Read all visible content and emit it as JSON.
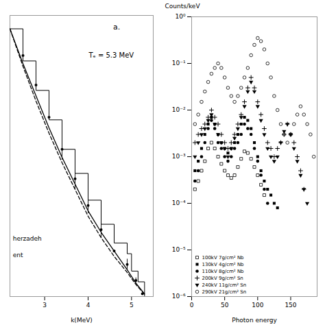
{
  "chart_data": [
    {
      "type": "line",
      "xlabel": "k(MeV)",
      "xlim": [
        2.2,
        5.5
      ],
      "xticks": [
        3,
        4,
        5
      ],
      "ylim": [
        0.0,
        1.05
      ],
      "tick_labels": "x",
      "annotations": [
        "Tₑ = 5.3 MeV",
        "a.",
        "herzadeh",
        "ent"
      ],
      "series": [
        {
          "type": "step",
          "color": "black",
          "x": [
            2.2,
            2.5,
            2.8,
            3.1,
            3.4,
            3.7,
            4.0,
            4.3,
            4.6,
            4.9,
            5.0,
            5.15,
            5.3
          ],
          "values": [
            1.0,
            0.88,
            0.77,
            0.66,
            0.55,
            0.46,
            0.36,
            0.27,
            0.2,
            0.16,
            0.095,
            0.055,
            0.0
          ]
        },
        {
          "type": "line",
          "color": "black",
          "line_style": "solid",
          "x": [
            2.2,
            2.5,
            2.8,
            3.1,
            3.4,
            3.7,
            4.0,
            4.3,
            4.6,
            4.9,
            5.1,
            5.3
          ],
          "values": [
            1.0,
            0.87,
            0.75,
            0.63,
            0.52,
            0.42,
            0.32,
            0.24,
            0.17,
            0.1,
            0.05,
            0.01
          ]
        },
        {
          "type": "line",
          "color": "black",
          "line_style": "dashed",
          "x": [
            2.2,
            2.5,
            2.8,
            3.1,
            3.4,
            3.7,
            4.0,
            4.3,
            4.6,
            4.9,
            5.1,
            5.3
          ],
          "values": [
            1.0,
            0.86,
            0.73,
            0.61,
            0.5,
            0.4,
            0.3,
            0.22,
            0.15,
            0.09,
            0.045,
            0.008
          ]
        },
        {
          "type": "scatter",
          "color": "black",
          "marker": "circle",
          "x": [
            2.5,
            2.8,
            3.1,
            3.4,
            3.7,
            4.0,
            4.3,
            4.6,
            4.9,
            5.1,
            5.25
          ],
          "values": [
            0.9,
            0.79,
            0.67,
            0.55,
            0.44,
            0.34,
            0.25,
            0.17,
            0.12,
            0.06,
            0.01
          ]
        },
        {
          "type": "errorbar",
          "color": "black",
          "x": [
            3.4,
            3.7,
            4.0,
            4.3,
            4.9,
            5.1
          ],
          "values": [
            0.55,
            0.44,
            0.34,
            0.25,
            0.12,
            0.06
          ],
          "error": [
            0.04,
            0.04,
            0.03,
            0.03,
            0.02,
            0.01
          ]
        }
      ]
    },
    {
      "type": "scatter",
      "xlabel": "Photon energy",
      "ylabel": "Counts/keV",
      "log": "y",
      "xlim": [
        0,
        190
      ],
      "xticks": [
        0,
        50,
        100,
        150
      ],
      "ylim": [
        1e-06,
        1
      ],
      "yticks": [
        {
          "value": 1e-06,
          "label": "10⁻⁶"
        },
        {
          "value": 1e-05,
          "label": "10⁻⁵"
        },
        {
          "value": 0.0001,
          "label": "10⁻⁴"
        },
        {
          "value": 0.001,
          "label": "10⁻³"
        },
        {
          "value": 0.01,
          "label": "10⁻²"
        },
        {
          "value": 0.1,
          "label": "10⁻¹"
        },
        {
          "value": 1,
          "label": "10⁰"
        }
      ],
      "legend": "lower left",
      "series": [
        {
          "name": "100kV 7g/cm² Nb",
          "color": "black",
          "marker": "square-open",
          "x": [
            5,
            10,
            15,
            20,
            25,
            30,
            35,
            40,
            45,
            50,
            55,
            60,
            65,
            70,
            75,
            80,
            85,
            90,
            95,
            100,
            105,
            110
          ],
          "values": [
            0.0002,
            0.0003,
            0.0005,
            0.0008,
            0.0015,
            0.002,
            0.0015,
            0.001,
            0.0007,
            0.0005,
            0.0004,
            0.00035,
            0.0004,
            0.0006,
            0.0009,
            0.0013,
            0.0012,
            0.0009,
            0.0006,
            0.0004,
            0.00025,
            0.00015
          ]
        },
        {
          "name": "130kV 4g/cm² Nb",
          "color": "black",
          "marker": "square",
          "x": [
            5,
            10,
            15,
            20,
            25,
            30,
            35,
            40,
            45,
            50,
            55,
            60,
            65,
            70,
            75,
            80,
            85,
            90,
            95,
            100,
            105,
            110,
            115,
            120,
            125,
            130
          ],
          "values": [
            0.0005,
            0.0008,
            0.0015,
            0.003,
            0.005,
            0.007,
            0.005,
            0.003,
            0.002,
            0.0015,
            0.0012,
            0.0015,
            0.002,
            0.003,
            0.005,
            0.007,
            0.006,
            0.004,
            0.002,
            0.001,
            0.0005,
            0.0003,
            0.0002,
            0.00015,
            0.0001,
            8e-05
          ]
        },
        {
          "name": "110kV 8g/cm² Nb",
          "color": "black",
          "marker": "circle",
          "x": [
            5,
            10,
            15,
            20,
            25,
            30,
            35,
            40,
            45,
            50,
            55,
            60,
            65,
            70,
            75,
            80,
            85,
            90,
            95,
            100,
            105,
            110,
            115
          ],
          "values": [
            0.0003,
            0.0005,
            0.001,
            0.002,
            0.004,
            0.006,
            0.004,
            0.002,
            0.0015,
            0.001,
            0.0008,
            0.001,
            0.0015,
            0.002,
            0.003,
            0.005,
            0.004,
            0.003,
            0.0015,
            0.0008,
            0.0004,
            0.0002,
            0.0001
          ]
        },
        {
          "name": "200kV 9g/cm² Sn",
          "color": "black",
          "marker": "plus",
          "x": [
            5,
            10,
            15,
            20,
            25,
            30,
            35,
            40,
            45,
            50,
            55,
            60,
            65,
            70,
            75,
            80,
            85,
            90,
            95,
            100,
            105,
            110,
            115,
            120,
            125,
            130,
            135,
            140,
            145,
            150,
            155,
            160,
            165,
            170
          ],
          "values": [
            0.002,
            0.003,
            0.004,
            0.005,
            0.007,
            0.01,
            0.007,
            0.005,
            0.003,
            0.002,
            0.0015,
            0.002,
            0.003,
            0.005,
            0.008,
            0.015,
            0.03,
            0.05,
            0.03,
            0.015,
            0.008,
            0.004,
            0.002,
            0.0015,
            0.001,
            0.0015,
            0.002,
            0.003,
            0.005,
            0.003,
            0.002,
            0.001,
            0.0005,
            0.0002
          ]
        },
        {
          "name": "240kV 11g/cm² Sn",
          "color": "black",
          "marker": "triangle-down",
          "x": [
            5,
            10,
            15,
            20,
            25,
            30,
            35,
            40,
            45,
            50,
            55,
            60,
            65,
            70,
            75,
            80,
            85,
            90,
            95,
            100,
            105,
            110,
            115,
            120,
            125,
            130,
            135,
            140,
            145,
            150,
            155,
            160,
            165,
            170,
            175
          ],
          "values": [
            0.001,
            0.002,
            0.003,
            0.004,
            0.006,
            0.008,
            0.005,
            0.003,
            0.002,
            0.0015,
            0.001,
            0.0015,
            0.0025,
            0.004,
            0.007,
            0.012,
            0.025,
            0.04,
            0.025,
            0.012,
            0.006,
            0.003,
            0.0015,
            0.001,
            0.0008,
            0.001,
            0.002,
            0.0035,
            0.005,
            0.003,
            0.0015,
            0.0008,
            0.0004,
            0.0002,
            0.0001
          ]
        },
        {
          "name": "290kV 21g/cm² Sn",
          "color": "black",
          "marker": "circle-open",
          "x": [
            5,
            10,
            15,
            20,
            25,
            30,
            35,
            40,
            45,
            50,
            55,
            60,
            65,
            70,
            75,
            80,
            85,
            90,
            95,
            100,
            105,
            110,
            115,
            120,
            125,
            130,
            135,
            140,
            145,
            150,
            155,
            160,
            165,
            170,
            175,
            180,
            185
          ],
          "values": [
            0.005,
            0.008,
            0.015,
            0.025,
            0.04,
            0.06,
            0.08,
            0.1,
            0.08,
            0.05,
            0.03,
            0.02,
            0.015,
            0.02,
            0.03,
            0.05,
            0.08,
            0.15,
            0.25,
            0.35,
            0.3,
            0.2,
            0.1,
            0.05,
            0.02,
            0.01,
            0.005,
            0.003,
            0.002,
            0.003,
            0.005,
            0.008,
            0.012,
            0.008,
            0.005,
            0.003,
            0.001
          ]
        }
      ]
    }
  ]
}
